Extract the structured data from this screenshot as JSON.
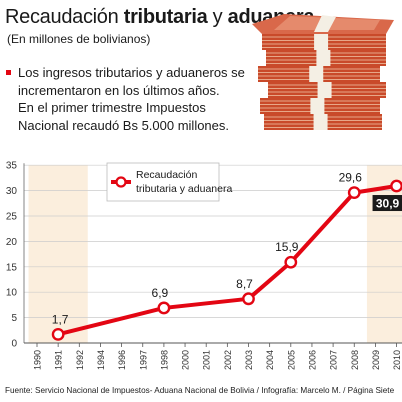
{
  "header": {
    "title_regular": "Recaudación ",
    "title_bold_1": "tributaria",
    "title_middle": " y ",
    "title_bold_2": "aduanera",
    "subtitle": "(En millones de bolivianos)"
  },
  "description": {
    "lines": [
      "Los ingresos tributarios y aduaneros se",
      "incrementaron en los últimos años.",
      "En el primer trimestre Impuestos",
      "Nacional recaudó Bs 5.000 millones."
    ]
  },
  "illustration": {
    "icon": "money-stack-icon"
  },
  "chart_data": {
    "type": "line",
    "categories": [
      "1990",
      "1991",
      "1992",
      "1994",
      "1996",
      "1997",
      "1998",
      "2000",
      "2001",
      "2002",
      "2003",
      "2004",
      "2005",
      "2006",
      "2007",
      "2008",
      "2009",
      "2010"
    ],
    "series": [
      {
        "name": "Recaudación tributaria y aduanera",
        "points": [
          {
            "x": "1991",
            "y": 1.7,
            "label": "1,7"
          },
          {
            "x": "1998",
            "y": 6.9,
            "label": "6,9"
          },
          {
            "x": "2003",
            "y": 8.7,
            "label": "8,7"
          },
          {
            "x": "2005",
            "y": 15.9,
            "label": "15,9"
          },
          {
            "x": "2008",
            "y": 29.6,
            "label": "29,6"
          },
          {
            "x": "2010",
            "y": 30.9,
            "label": "30,9"
          }
        ]
      }
    ],
    "ylim": [
      0,
      35
    ],
    "yticks": [
      0,
      5,
      10,
      15,
      20,
      25,
      30,
      35
    ],
    "grid": true,
    "legend": "top-left",
    "highlighted_ranges": [
      [
        "1990",
        "1992"
      ],
      [
        "2009",
        "2010"
      ]
    ],
    "colors": {
      "line": "#e30613",
      "highlight": "#fbeedd",
      "grid": "#cccccc",
      "last_label_bg": "#1a1a1a"
    }
  },
  "source": "Fuente: Servicio Nacional de Impuestos- Aduana Nacional de Bolivia / Infografía: Marcelo M. / Página Siete"
}
